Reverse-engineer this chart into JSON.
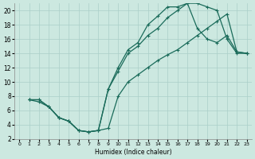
{
  "bg_color": "#cce8e0",
  "grid_color": "#aacfc8",
  "line_color": "#1a6b5a",
  "xlabel": "Humidex (Indice chaleur)",
  "xlim": [
    -0.5,
    23.5
  ],
  "ylim": [
    2,
    21
  ],
  "yticks": [
    2,
    4,
    6,
    8,
    10,
    12,
    14,
    16,
    18,
    20
  ],
  "xticks": [
    0,
    1,
    2,
    3,
    4,
    5,
    6,
    7,
    8,
    9,
    10,
    11,
    12,
    13,
    14,
    15,
    16,
    17,
    18,
    19,
    20,
    21,
    22,
    23
  ],
  "curve1_x": [
    1,
    2,
    3,
    4,
    5,
    6,
    7,
    8,
    9,
    10,
    11,
    12,
    13,
    14,
    15,
    16,
    17,
    18,
    19,
    20,
    21,
    22,
    23
  ],
  "curve1_y": [
    7.5,
    7.5,
    6.5,
    5.0,
    4.5,
    3.2,
    3.0,
    3.2,
    9.0,
    12.0,
    14.5,
    15.5,
    18.0,
    19.2,
    20.5,
    20.5,
    21.0,
    21.0,
    20.5,
    20.0,
    16.0,
    14.0,
    14.0
  ],
  "curve2_x": [
    1,
    2,
    3,
    4,
    5,
    6,
    7,
    8,
    9,
    10,
    11,
    12,
    13,
    14,
    15,
    16,
    17,
    18,
    19,
    20,
    21,
    22,
    23
  ],
  "curve2_y": [
    7.5,
    7.5,
    6.5,
    5.0,
    4.5,
    3.2,
    3.0,
    3.2,
    9.0,
    11.5,
    14.0,
    15.0,
    16.5,
    17.5,
    19.0,
    20.0,
    21.0,
    17.5,
    16.0,
    15.5,
    16.5,
    14.2,
    14.0
  ],
  "curve3_x": [
    1,
    2,
    3,
    4,
    5,
    6,
    7,
    8,
    9,
    10,
    11,
    12,
    13,
    14,
    15,
    16,
    17,
    18,
    19,
    20,
    21,
    22,
    23
  ],
  "curve3_y": [
    7.5,
    7.2,
    6.5,
    5.0,
    4.5,
    3.2,
    3.0,
    3.2,
    3.5,
    8.0,
    10.0,
    11.0,
    12.0,
    13.0,
    13.8,
    14.5,
    15.5,
    16.5,
    17.5,
    18.5,
    19.5,
    14.2,
    14.0
  ]
}
